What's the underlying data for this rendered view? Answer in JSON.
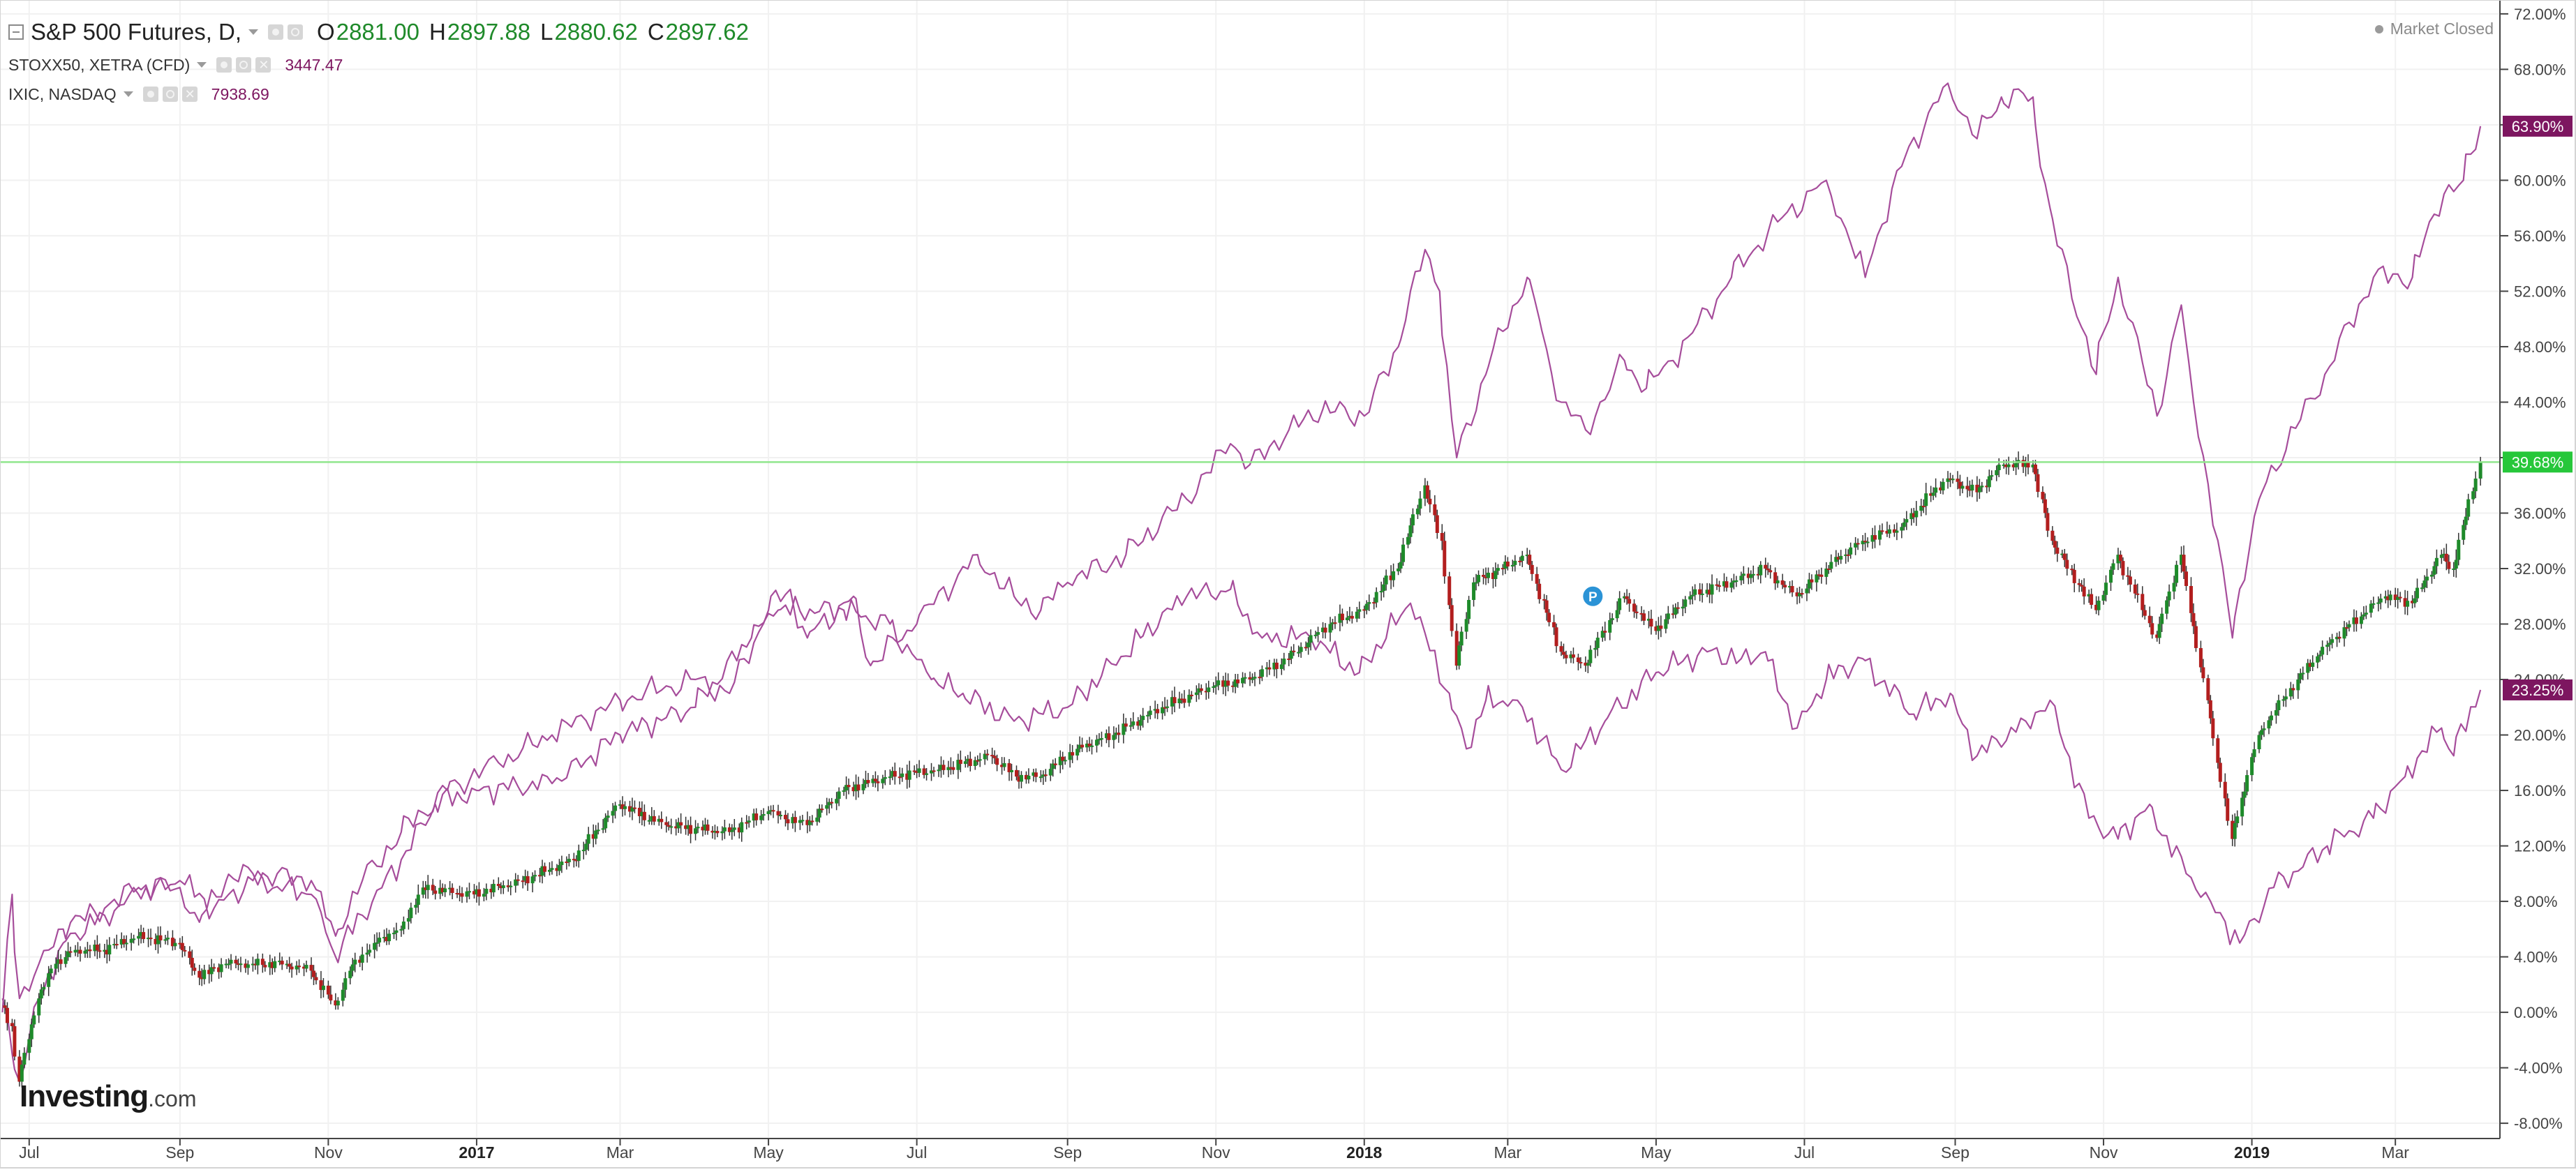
{
  "legend": {
    "main_title": "S&P 500 Futures, D,",
    "open_key": "O",
    "open": "2881.00",
    "high_key": "H",
    "high": "2897.88",
    "low_key": "L",
    "low": "2880.62",
    "close_key": "C",
    "close": "2897.62",
    "index1_name": "STOXX50, XETRA (CFD)",
    "index1_value": "3447.47",
    "index2_name": "IXIC, NASDAQ",
    "index2_value": "7938.69"
  },
  "market_status": "Market Closed",
  "logo": {
    "name": "Investing",
    "suffix": ".com"
  },
  "colors": {
    "compare_line": "#a64d9b",
    "candle_up": "#1e8a2a",
    "candle_down": "#b21e1e",
    "wick": "#333333",
    "marker_line": "#91e68d",
    "axis_text": "#444444",
    "grid": "#f1f1f1"
  },
  "chart_data": {
    "type": "line",
    "y_unit": "percent change",
    "ylim": [
      -9,
      73
    ],
    "grid": true,
    "y_ticks": [
      -8,
      -4,
      0,
      4,
      8,
      12,
      16,
      20,
      24,
      28,
      32,
      36,
      40,
      44,
      48,
      52,
      56,
      60,
      64,
      68,
      72
    ],
    "y_tick_labels": [
      "-8.00%",
      "-4.00%",
      "0.00%",
      "4.00%",
      "8.00%",
      "12.00%",
      "16.00%",
      "20.00%",
      "24.00%",
      "28.00%",
      "32.00%",
      "36.00%",
      "40.00%",
      "44.00%",
      "48.00%",
      "52.00%",
      "56.00%",
      "60.00%",
      "64.00%",
      "68.00%",
      "72.00%"
    ],
    "x_range": [
      "2016-06-19",
      "2019-04-13"
    ],
    "x_ticks": [
      {
        "label": "Jul",
        "date": "2016-07-01",
        "bold": false
      },
      {
        "label": "Sep",
        "date": "2016-09-01",
        "bold": false
      },
      {
        "label": "Nov",
        "date": "2016-11-01",
        "bold": false
      },
      {
        "label": "2017",
        "date": "2017-01-01",
        "bold": true
      },
      {
        "label": "Mar",
        "date": "2017-03-01",
        "bold": false
      },
      {
        "label": "May",
        "date": "2017-05-01",
        "bold": false
      },
      {
        "label": "Jul",
        "date": "2017-07-01",
        "bold": false
      },
      {
        "label": "Sep",
        "date": "2017-09-01",
        "bold": false
      },
      {
        "label": "Nov",
        "date": "2017-11-01",
        "bold": false
      },
      {
        "label": "2018",
        "date": "2018-01-01",
        "bold": true
      },
      {
        "label": "Mar",
        "date": "2018-03-01",
        "bold": false
      },
      {
        "label": "May",
        "date": "2018-05-01",
        "bold": false
      },
      {
        "label": "Jul",
        "date": "2018-07-01",
        "bold": false
      },
      {
        "label": "Sep",
        "date": "2018-09-01",
        "bold": false
      },
      {
        "label": "Nov",
        "date": "2018-11-01",
        "bold": false
      },
      {
        "label": "2019",
        "date": "2019-01-01",
        "bold": true
      },
      {
        "label": "Mar",
        "date": "2019-03-01",
        "bold": false
      }
    ],
    "price_marker": {
      "label": "39.68%",
      "value": 39.68
    },
    "badge": {
      "label": "P",
      "date": "2018-04-05",
      "value": 30
    },
    "series": [
      {
        "name": "IXIC, NASDAQ",
        "style": "line",
        "end_label": "63.90%",
        "points": [
          [
            "2016-06-20",
            0
          ],
          [
            "2016-06-24",
            8.5
          ],
          [
            "2016-06-27",
            1
          ],
          [
            "2016-07-05",
            3.5
          ],
          [
            "2016-07-15",
            6
          ],
          [
            "2016-08-01",
            7.5
          ],
          [
            "2016-08-15",
            9
          ],
          [
            "2016-09-01",
            9
          ],
          [
            "2016-09-09",
            6.5
          ],
          [
            "2016-09-20",
            9.5
          ],
          [
            "2016-10-01",
            10
          ],
          [
            "2016-10-25",
            9.5
          ],
          [
            "2016-11-04",
            5.5
          ],
          [
            "2016-11-15",
            9.5
          ],
          [
            "2016-12-01",
            13
          ],
          [
            "2016-12-20",
            16
          ],
          [
            "2017-01-10",
            18
          ],
          [
            "2017-02-01",
            20
          ],
          [
            "2017-03-01",
            22.5
          ],
          [
            "2017-04-01",
            24
          ],
          [
            "2017-04-15",
            23
          ],
          [
            "2017-05-01",
            29
          ],
          [
            "2017-05-10",
            30.5
          ],
          [
            "2017-05-17",
            27
          ],
          [
            "2017-06-05",
            30
          ],
          [
            "2017-06-12",
            25
          ],
          [
            "2017-07-01",
            28
          ],
          [
            "2017-07-26",
            33
          ],
          [
            "2017-08-10",
            30
          ],
          [
            "2017-08-21",
            29
          ],
          [
            "2017-09-01",
            31
          ],
          [
            "2017-09-25",
            33
          ],
          [
            "2017-10-20",
            37
          ],
          [
            "2017-11-07",
            41
          ],
          [
            "2017-11-15",
            39.5
          ],
          [
            "2017-12-01",
            42
          ],
          [
            "2017-12-15",
            43.5
          ],
          [
            "2018-01-01",
            43
          ],
          [
            "2018-01-15",
            48
          ],
          [
            "2018-01-26",
            55
          ],
          [
            "2018-02-01",
            52
          ],
          [
            "2018-02-08",
            40
          ],
          [
            "2018-02-20",
            46
          ],
          [
            "2018-03-09",
            53
          ],
          [
            "2018-03-14",
            50
          ],
          [
            "2018-03-23",
            44
          ],
          [
            "2018-04-02",
            42
          ],
          [
            "2018-04-18",
            47
          ],
          [
            "2018-04-27",
            45
          ],
          [
            "2018-05-08",
            47
          ],
          [
            "2018-06-01",
            53
          ],
          [
            "2018-06-20",
            57
          ],
          [
            "2018-07-10",
            60
          ],
          [
            "2018-07-26",
            53
          ],
          [
            "2018-08-10",
            61
          ],
          [
            "2018-08-29",
            67
          ],
          [
            "2018-09-10",
            63
          ],
          [
            "2018-09-20",
            66
          ],
          [
            "2018-10-03",
            66
          ],
          [
            "2018-10-10",
            58
          ],
          [
            "2018-10-29",
            46
          ],
          [
            "2018-11-07",
            53
          ],
          [
            "2018-11-23",
            43
          ],
          [
            "2018-12-03",
            51
          ],
          [
            "2018-12-24",
            27
          ],
          [
            "2019-01-04",
            37
          ],
          [
            "2019-01-31",
            46
          ],
          [
            "2019-02-20",
            53
          ],
          [
            "2019-03-08",
            53
          ],
          [
            "2019-03-21",
            59
          ],
          [
            "2019-03-29",
            60
          ],
          [
            "2019-04-05",
            63.9
          ]
        ]
      },
      {
        "name": "STOXX50, XETRA (CFD)",
        "style": "line",
        "end_label": "23.25%",
        "points": [
          [
            "2016-06-20",
            1
          ],
          [
            "2016-06-24",
            -3
          ],
          [
            "2016-06-27",
            -5
          ],
          [
            "2016-07-05",
            1
          ],
          [
            "2016-07-15",
            5
          ],
          [
            "2016-08-01",
            7
          ],
          [
            "2016-08-15",
            8.5
          ],
          [
            "2016-09-01",
            9.5
          ],
          [
            "2016-09-15",
            7.5
          ],
          [
            "2016-10-01",
            9.5
          ],
          [
            "2016-10-25",
            8.5
          ],
          [
            "2016-11-04",
            4
          ],
          [
            "2016-11-15",
            7
          ],
          [
            "2016-12-01",
            11
          ],
          [
            "2016-12-15",
            15
          ],
          [
            "2017-01-01",
            16
          ],
          [
            "2017-02-01",
            16.5
          ],
          [
            "2017-03-01",
            20
          ],
          [
            "2017-04-01",
            22
          ],
          [
            "2017-04-24",
            27
          ],
          [
            "2017-05-05",
            29
          ],
          [
            "2017-06-01",
            29
          ],
          [
            "2017-06-20",
            28
          ],
          [
            "2017-07-07",
            24
          ],
          [
            "2017-07-20",
            23
          ],
          [
            "2017-08-10",
            21
          ],
          [
            "2017-09-01",
            22
          ],
          [
            "2017-10-01",
            27
          ],
          [
            "2017-10-20",
            30
          ],
          [
            "2017-11-07",
            30.5
          ],
          [
            "2017-11-20",
            27
          ],
          [
            "2017-12-10",
            27
          ],
          [
            "2017-12-30",
            24.5
          ],
          [
            "2018-01-20",
            29.5
          ],
          [
            "2018-02-05",
            23
          ],
          [
            "2018-02-12",
            19
          ],
          [
            "2018-02-20",
            22.5
          ],
          [
            "2018-03-05",
            22.5
          ],
          [
            "2018-03-23",
            17.5
          ],
          [
            "2018-04-10",
            21
          ],
          [
            "2018-05-01",
            24.5
          ],
          [
            "2018-05-22",
            26
          ],
          [
            "2018-06-05",
            25.5
          ],
          [
            "2018-06-15",
            26
          ],
          [
            "2018-06-28",
            20.5
          ],
          [
            "2018-07-10",
            24
          ],
          [
            "2018-07-25",
            25.5
          ],
          [
            "2018-08-15",
            21.5
          ],
          [
            "2018-08-30",
            23
          ],
          [
            "2018-09-10",
            18.5
          ],
          [
            "2018-09-30",
            21
          ],
          [
            "2018-10-10",
            22.5
          ],
          [
            "2018-10-26",
            14
          ],
          [
            "2018-11-07",
            12.5
          ],
          [
            "2018-11-20",
            15
          ],
          [
            "2018-12-05",
            10
          ],
          [
            "2018-12-15",
            8
          ],
          [
            "2018-12-27",
            5
          ],
          [
            "2019-01-10",
            9
          ],
          [
            "2019-02-01",
            12
          ],
          [
            "2019-02-20",
            14
          ],
          [
            "2019-03-05",
            17
          ],
          [
            "2019-03-20",
            20.5
          ],
          [
            "2019-03-25",
            18.5
          ],
          [
            "2019-04-05",
            23.25
          ]
        ]
      },
      {
        "name": "S&P 500 Futures",
        "style": "candles",
        "end_label": "39.68%",
        "points": [
          [
            "2016-06-20",
            0.5
          ],
          [
            "2016-06-24",
            -1
          ],
          [
            "2016-06-27",
            -5
          ],
          [
            "2016-07-05",
            1
          ],
          [
            "2016-07-12",
            3.5
          ],
          [
            "2016-07-20",
            4.5
          ],
          [
            "2016-08-01",
            4.5
          ],
          [
            "2016-08-15",
            5.5
          ],
          [
            "2016-09-01",
            5
          ],
          [
            "2016-09-09",
            2.5
          ],
          [
            "2016-09-20",
            3.5
          ],
          [
            "2016-10-01",
            3.5
          ],
          [
            "2016-10-15",
            3.5
          ],
          [
            "2016-10-25",
            3
          ],
          [
            "2016-11-04",
            0.5
          ],
          [
            "2016-11-10",
            3
          ],
          [
            "2016-11-20",
            5
          ],
          [
            "2016-12-01",
            6
          ],
          [
            "2016-12-10",
            9
          ],
          [
            "2016-12-31",
            8.5
          ],
          [
            "2017-01-20",
            9.5
          ],
          [
            "2017-02-10",
            11
          ],
          [
            "2017-03-01",
            15
          ],
          [
            "2017-03-20",
            13.5
          ],
          [
            "2017-04-15",
            13
          ],
          [
            "2017-05-01",
            14.5
          ],
          [
            "2017-05-17",
            13.5
          ],
          [
            "2017-06-01",
            16
          ],
          [
            "2017-06-20",
            17
          ],
          [
            "2017-07-10",
            17.5
          ],
          [
            "2017-08-01",
            18.5
          ],
          [
            "2017-08-11",
            17
          ],
          [
            "2017-08-21",
            17
          ],
          [
            "2017-09-05",
            19
          ],
          [
            "2017-09-20",
            20
          ],
          [
            "2017-10-10",
            22
          ],
          [
            "2017-10-31",
            23.5
          ],
          [
            "2017-11-15",
            24
          ],
          [
            "2017-12-01",
            25.5
          ],
          [
            "2017-12-18",
            28
          ],
          [
            "2018-01-01",
            29
          ],
          [
            "2018-01-15",
            32
          ],
          [
            "2018-01-26",
            38
          ],
          [
            "2018-02-02",
            34
          ],
          [
            "2018-02-08",
            25
          ],
          [
            "2018-02-15",
            31
          ],
          [
            "2018-02-27",
            32
          ],
          [
            "2018-03-09",
            33
          ],
          [
            "2018-03-23",
            26
          ],
          [
            "2018-04-02",
            25
          ],
          [
            "2018-04-18",
            30
          ],
          [
            "2018-05-01",
            27.5
          ],
          [
            "2018-05-15",
            30
          ],
          [
            "2018-06-01",
            31
          ],
          [
            "2018-06-15",
            32
          ],
          [
            "2018-06-28",
            30
          ],
          [
            "2018-07-10",
            32
          ],
          [
            "2018-07-25",
            34
          ],
          [
            "2018-08-10",
            35
          ],
          [
            "2018-08-29",
            38.5
          ],
          [
            "2018-09-10",
            37.5
          ],
          [
            "2018-09-21",
            39.5
          ],
          [
            "2018-10-03",
            39.5
          ],
          [
            "2018-10-11",
            34
          ],
          [
            "2018-10-29",
            29
          ],
          [
            "2018-11-07",
            33
          ],
          [
            "2018-11-23",
            27
          ],
          [
            "2018-12-03",
            33
          ],
          [
            "2018-12-14",
            22.5
          ],
          [
            "2018-12-24",
            12.5
          ],
          [
            "2019-01-04",
            20
          ],
          [
            "2019-01-20",
            24
          ],
          [
            "2019-02-01",
            26.5
          ],
          [
            "2019-02-25",
            30
          ],
          [
            "2019-03-08",
            29.5
          ],
          [
            "2019-03-20",
            33
          ],
          [
            "2019-03-25",
            32
          ],
          [
            "2019-04-05",
            39.68
          ]
        ]
      }
    ]
  }
}
